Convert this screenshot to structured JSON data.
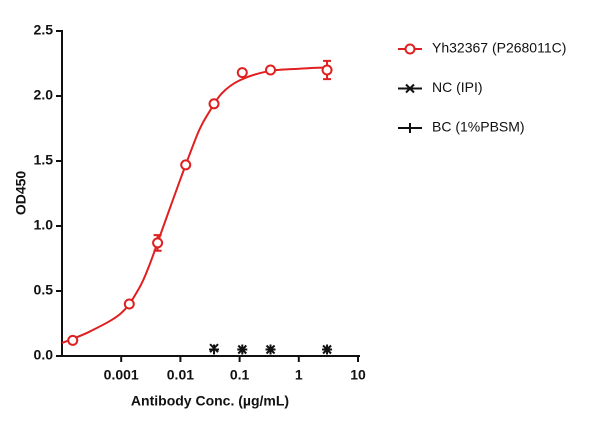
{
  "chart_data": {
    "type": "scatter",
    "xlabel": "Antibody Conc. (µg/mL)",
    "ylabel": "OD450",
    "xscale": "log",
    "xlim": [
      0.0001,
      10
    ],
    "xticks": [
      0.001,
      0.01,
      0.1,
      1,
      10
    ],
    "ylim": [
      0,
      2.5
    ],
    "yticks": [
      {
        "value": 0,
        "label": "0.0"
      },
      {
        "value": 0.5,
        "label": "0.5"
      },
      {
        "value": 1,
        "label": "1.0"
      },
      {
        "value": 1.5,
        "label": "1.5"
      },
      {
        "value": 2,
        "label": "2.0"
      },
      {
        "value": 2.5,
        "label": "2.5"
      }
    ],
    "legend": "right",
    "series": [
      {
        "name": "Yh32367 (P268011C)",
        "color": "#e02020",
        "marker": "circle",
        "x": [
          0.000152,
          0.00137,
          0.00412,
          0.0123,
          0.037,
          0.111,
          0.333,
          3
        ],
        "values": [
          0.12,
          0.4,
          0.87,
          1.47,
          1.94,
          2.18,
          2.2,
          2.2
        ],
        "errors": [
          null,
          null,
          0.06,
          null,
          null,
          null,
          null,
          0.07
        ],
        "fit": {
          "x": [
            0.0001,
            0.0003,
            0.001,
            0.002,
            0.003,
            0.005,
            0.01,
            0.02,
            0.03,
            0.05,
            0.1,
            0.3,
            1,
            3
          ],
          "values": [
            0.1,
            0.19,
            0.33,
            0.52,
            0.7,
            0.98,
            1.36,
            1.72,
            1.87,
            2.02,
            2.12,
            2.19,
            2.21,
            2.22
          ]
        }
      },
      {
        "name": "NC (IPI)",
        "color": "#111111",
        "marker": "x",
        "x": [
          0.037,
          0.111,
          0.333,
          3
        ],
        "values": [
          0.06,
          0.05,
          0.05,
          0.05
        ]
      },
      {
        "name": "BC (1%PBSM)",
        "color": "#111111",
        "marker": "plus",
        "x": [
          0.037,
          0.111,
          0.333,
          3
        ],
        "values": [
          0.05,
          0.05,
          0.05,
          0.05
        ]
      }
    ]
  }
}
